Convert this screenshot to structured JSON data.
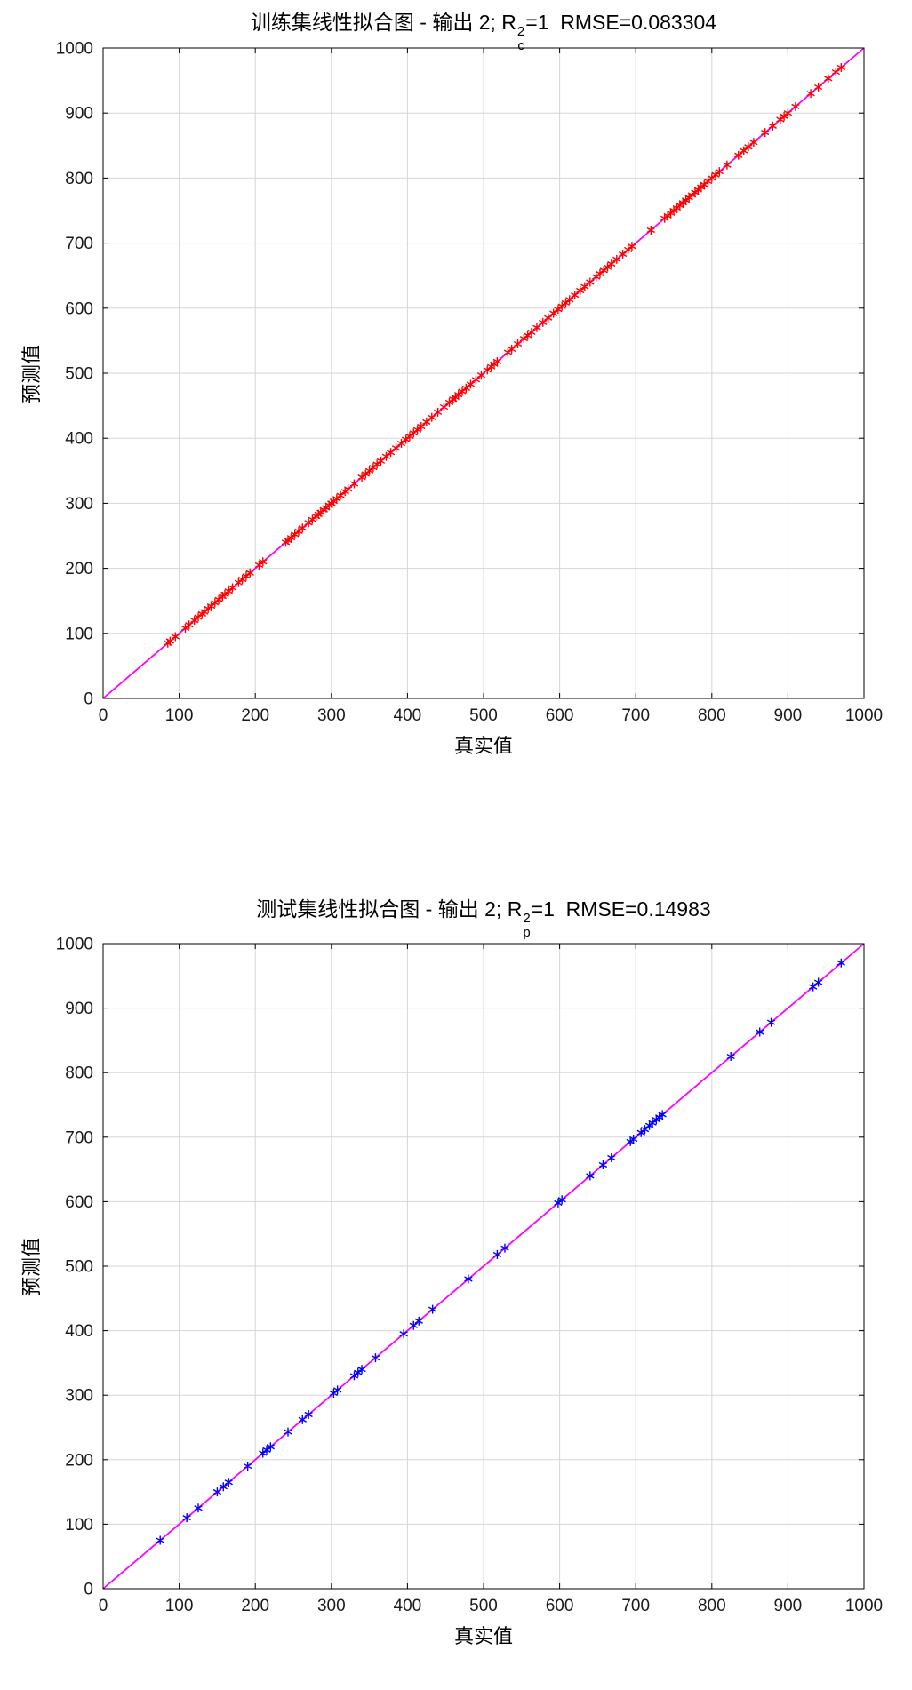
{
  "figures": [
    {
      "title_prefix": "训练集线性拟合图 - 输出 2; R",
      "title_sup": "2",
      "title_sub": "c",
      "title_suffix": "=1  RMSE=0.083304",
      "xlabel": "真实值",
      "ylabel": "预测值"
    },
    {
      "title_prefix": "测试集线性拟合图 - 输出 2; R",
      "title_sup": "2",
      "title_sub": "p",
      "title_suffix": "=1  RMSE=0.14983",
      "xlabel": "真实值",
      "ylabel": "预测值"
    }
  ],
  "chart_data": [
    {
      "type": "scatter",
      "title": "训练集线性拟合图 - 输出 2; R_c^2=1  RMSE=0.083304",
      "xlabel": "真实值",
      "ylabel": "预测值",
      "xlim": [
        0,
        1000
      ],
      "ylim": [
        0,
        1000
      ],
      "xticks": [
        0,
        100,
        200,
        300,
        400,
        500,
        600,
        700,
        800,
        900,
        1000
      ],
      "yticks": [
        0,
        100,
        200,
        300,
        400,
        500,
        600,
        700,
        800,
        900,
        1000
      ],
      "grid": true,
      "legend": "none",
      "r2": 1,
      "rmse": 0.083304,
      "fit_line": {
        "x": [
          0,
          1000
        ],
        "y": [
          0,
          1000
        ],
        "color": "#ff00ff"
      },
      "marker": {
        "shape": "asterisk",
        "color": "#ff0000"
      },
      "points_note": "y ≈ x (perfect fit, R²=1, RMSE=0.083304)",
      "points_x": [
        85,
        88,
        95,
        108,
        113,
        120,
        125,
        130,
        133,
        138,
        142,
        147,
        152,
        157,
        160,
        165,
        170,
        178,
        183,
        188,
        193,
        205,
        210,
        240,
        243,
        247,
        252,
        257,
        262,
        270,
        275,
        280,
        283,
        286,
        290,
        293,
        297,
        300,
        303,
        307,
        312,
        318,
        322,
        330,
        340,
        345,
        350,
        355,
        360,
        365,
        372,
        378,
        385,
        392,
        398,
        403,
        408,
        413,
        418,
        425,
        432,
        440,
        448,
        455,
        460,
        463,
        467,
        472,
        477,
        483,
        490,
        497,
        505,
        510,
        514,
        518,
        532,
        537,
        545,
        553,
        558,
        563,
        570,
        578,
        585,
        592,
        598,
        603,
        608,
        613,
        620,
        627,
        633,
        640,
        648,
        653,
        658,
        663,
        668,
        675,
        683,
        690,
        695,
        720,
        738,
        742,
        746,
        750,
        754,
        758,
        762,
        766,
        770,
        774,
        778,
        782,
        786,
        790,
        795,
        800,
        805,
        810,
        820,
        835,
        842,
        848,
        855,
        870,
        880,
        890,
        895,
        900,
        910,
        930,
        940,
        953,
        963,
        970
      ]
    },
    {
      "type": "scatter",
      "title": "测试集线性拟合图 - 输出 2; R_p^2=1  RMSE=0.14983",
      "xlabel": "真实值",
      "ylabel": "预测值",
      "xlim": [
        0,
        1000
      ],
      "ylim": [
        0,
        1000
      ],
      "xticks": [
        0,
        100,
        200,
        300,
        400,
        500,
        600,
        700,
        800,
        900,
        1000
      ],
      "yticks": [
        0,
        100,
        200,
        300,
        400,
        500,
        600,
        700,
        800,
        900,
        1000
      ],
      "grid": true,
      "legend": "none",
      "r2": 1,
      "rmse": 0.14983,
      "fit_line": {
        "x": [
          0,
          1000
        ],
        "y": [
          0,
          1000
        ],
        "color": "#ff00ff"
      },
      "marker": {
        "shape": "asterisk",
        "color": "#0000ff"
      },
      "points_note": "y ≈ x (perfect fit, R²=1, RMSE=0.14983)",
      "points_x": [
        75,
        110,
        125,
        150,
        158,
        165,
        190,
        210,
        215,
        220,
        243,
        262,
        270,
        303,
        308,
        330,
        335,
        340,
        358,
        395,
        408,
        415,
        433,
        480,
        518,
        528,
        598,
        603,
        640,
        657,
        668,
        693,
        697,
        707,
        712,
        718,
        722,
        727,
        731,
        735,
        825,
        863,
        878,
        933,
        940,
        970
      ]
    }
  ]
}
